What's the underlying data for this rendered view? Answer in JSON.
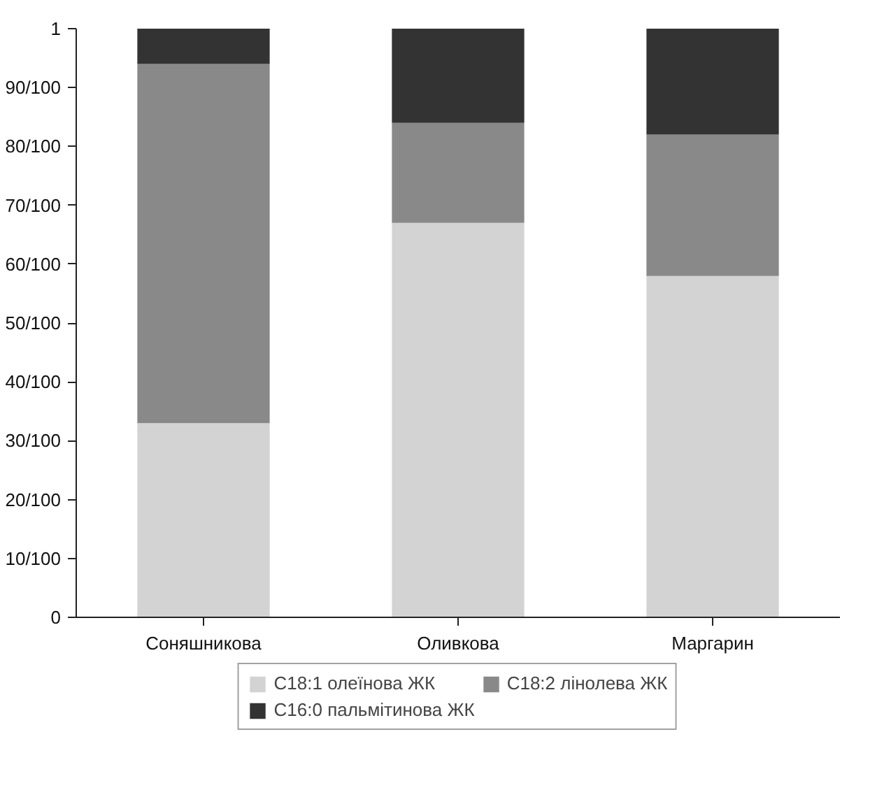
{
  "chart_data": {
    "type": "bar",
    "stacked": true,
    "categories": [
      "Соняшникова",
      "Оливкова",
      "Маргарин"
    ],
    "series": [
      {
        "name": "C18:1 олеїнова ЖК",
        "color": "#d3d3d3",
        "values": [
          0.33,
          0.67,
          0.58
        ]
      },
      {
        "name": "C18:2 лінолева ЖК",
        "color": "#898989",
        "values": [
          0.61,
          0.17,
          0.24
        ]
      },
      {
        "name": "C16:0 пальмітинова ЖК",
        "color": "#333333",
        "values": [
          0.06,
          0.16,
          0.18
        ]
      }
    ],
    "ylim": [
      0,
      1
    ],
    "yticks": [
      0,
      {
        "value": 0.1,
        "label": "10/100"
      },
      {
        "value": 0.2,
        "label": "20/100"
      },
      {
        "value": 0.3,
        "label": "30/100"
      },
      {
        "value": 0.4,
        "label": "40/100"
      },
      {
        "value": 0.5,
        "label": "50/100"
      },
      {
        "value": 0.6,
        "label": "60/100"
      },
      {
        "value": 0.7,
        "label": "70/100"
      },
      {
        "value": 0.8,
        "label": "80/100"
      },
      {
        "value": 0.9,
        "label": "90/100"
      },
      1
    ],
    "legend": "bottom",
    "grid": false
  }
}
